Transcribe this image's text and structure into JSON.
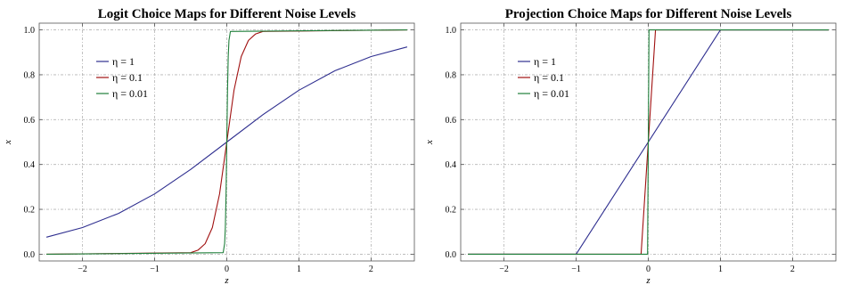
{
  "chart_data": [
    {
      "type": "line",
      "title": "Logit Choice Maps for Different Noise Levels",
      "xlabel": "z",
      "ylabel": "x",
      "xlim": [
        -2.6,
        2.6
      ],
      "ylim": [
        -0.03,
        1.03
      ],
      "grid": true,
      "legend_position": "top-left",
      "x_ticks": [
        "-2",
        "-1",
        "0",
        "1",
        "2"
      ],
      "y_ticks": [
        "0.0",
        "0.2",
        "0.4",
        "0.6",
        "0.8",
        "1.0"
      ],
      "series": [
        {
          "name": "η = 1",
          "color": "#2e2e8f",
          "x": [
            -2.5,
            -2,
            -1.5,
            -1,
            -0.5,
            0,
            0.5,
            1,
            1.5,
            2,
            2.5
          ],
          "values": [
            0.076,
            0.119,
            0.182,
            0.269,
            0.378,
            0.5,
            0.622,
            0.731,
            0.818,
            0.881,
            0.924
          ]
        },
        {
          "name": "η = 0.1",
          "color": "#a01010",
          "x": [
            -2.5,
            -0.5,
            -0.4,
            -0.3,
            -0.2,
            -0.1,
            0,
            0.1,
            0.2,
            0.3,
            0.4,
            0.5,
            2.5
          ],
          "values": [
            0.0,
            0.007,
            0.018,
            0.047,
            0.119,
            0.269,
            0.5,
            0.731,
            0.881,
            0.953,
            0.982,
            0.993,
            1.0
          ]
        },
        {
          "name": "η = 0.01",
          "color": "#1f7f3a",
          "x": [
            -2.5,
            -0.05,
            -0.03,
            -0.02,
            -0.01,
            0,
            0.01,
            0.02,
            0.03,
            0.05,
            2.5
          ],
          "values": [
            0.0,
            0.007,
            0.047,
            0.119,
            0.269,
            0.5,
            0.731,
            0.881,
            0.953,
            0.993,
            1.0
          ]
        }
      ]
    },
    {
      "type": "line",
      "title": "Projection Choice Maps for Different Noise Levels",
      "xlabel": "z",
      "ylabel": "x",
      "xlim": [
        -2.6,
        2.6
      ],
      "ylim": [
        -0.03,
        1.03
      ],
      "grid": true,
      "legend_position": "top-left",
      "x_ticks": [
        "-2",
        "-1",
        "0",
        "1",
        "2"
      ],
      "y_ticks": [
        "0.0",
        "0.2",
        "0.4",
        "0.6",
        "0.8",
        "1.0"
      ],
      "series": [
        {
          "name": "η = 1",
          "color": "#2e2e8f",
          "x": [
            -2.5,
            -1,
            1,
            2.5
          ],
          "values": [
            0,
            0,
            1,
            1
          ]
        },
        {
          "name": "η = 0.1",
          "color": "#a01010",
          "x": [
            -2.5,
            -0.1,
            0.1,
            2.5
          ],
          "values": [
            0,
            0,
            1,
            1
          ]
        },
        {
          "name": "η = 0.01",
          "color": "#1f7f3a",
          "x": [
            -2.5,
            -0.01,
            0.01,
            2.5
          ],
          "values": [
            0,
            0,
            1,
            1
          ]
        }
      ]
    }
  ]
}
